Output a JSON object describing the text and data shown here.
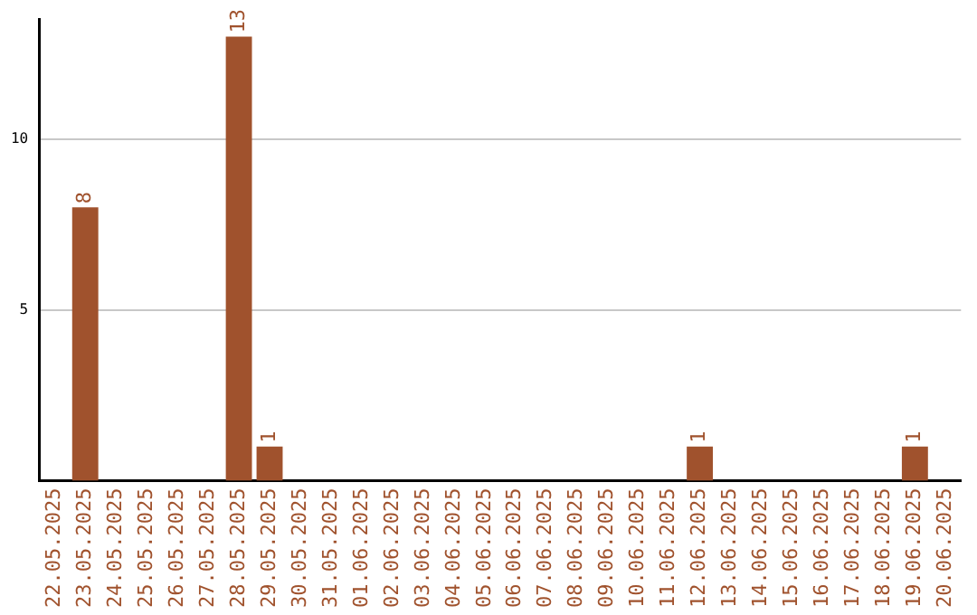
{
  "chart_data": {
    "type": "bar",
    "categories": [
      "22.05.2025",
      "23.05.2025",
      "24.05.2025",
      "25.05.2025",
      "26.05.2025",
      "27.05.2025",
      "28.05.2025",
      "29.05.2025",
      "30.05.2025",
      "31.05.2025",
      "01.06.2025",
      "02.06.2025",
      "03.06.2025",
      "04.06.2025",
      "05.06.2025",
      "06.06.2025",
      "07.06.2025",
      "08.06.2025",
      "09.06.2025",
      "10.06.2025",
      "11.06.2025",
      "12.06.2025",
      "13.06.2025",
      "14.06.2025",
      "15.06.2025",
      "16.06.2025",
      "17.06.2025",
      "18.06.2025",
      "19.06.2025",
      "20.06.2025"
    ],
    "values": [
      0,
      8,
      0,
      0,
      0,
      0,
      13,
      1,
      0,
      0,
      0,
      0,
      0,
      0,
      0,
      0,
      0,
      0,
      0,
      0,
      0,
      1,
      0,
      0,
      0,
      0,
      0,
      0,
      1,
      0
    ],
    "value_labels": [
      null,
      "8",
      null,
      null,
      null,
      null,
      "13",
      "1",
      null,
      null,
      null,
      null,
      null,
      null,
      null,
      null,
      null,
      null,
      null,
      null,
      null,
      "1",
      null,
      null,
      null,
      null,
      null,
      null,
      "1",
      null
    ],
    "color": "#a0522d",
    "ylim": [
      0,
      13.5
    ],
    "yticks": [
      5,
      10
    ],
    "grid": "y",
    "legend": false
  }
}
